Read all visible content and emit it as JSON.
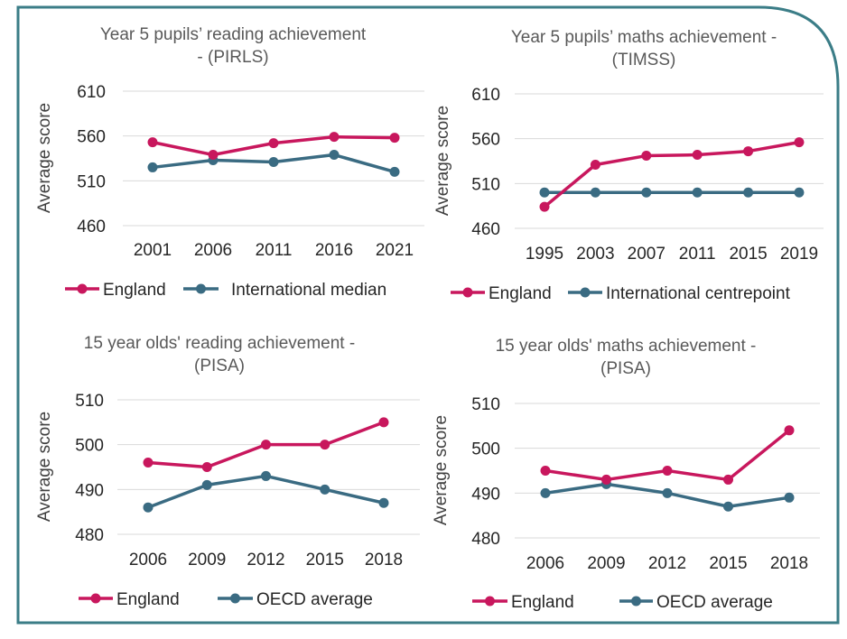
{
  "colors": {
    "england": "#c8175d",
    "comparison": "#3a6b82",
    "frame": "#3b7d87",
    "grid": "#d9d9d9"
  },
  "chart_data": [
    {
      "type": "line",
      "title": [
        "Year 5 pupils’ reading achievement",
        "- (PIRLS)"
      ],
      "ylabel": "Average score",
      "xlabel": "",
      "categories": [
        "2001",
        "2006",
        "2011",
        "2016",
        "2021"
      ],
      "ylim": [
        460,
        610
      ],
      "yticks": [
        460,
        510,
        560,
        610
      ],
      "grid": true,
      "legend_position": "bottom",
      "series": [
        {
          "name": "England",
          "color_key": "england",
          "values": [
            553,
            539,
            552,
            559,
            558
          ]
        },
        {
          "name": "International median",
          "color_key": "comparison",
          "values": [
            525,
            533,
            531,
            539,
            520
          ]
        }
      ]
    },
    {
      "type": "line",
      "title": [
        "Year 5 pupils’ maths achievement -",
        "(TIMSS)"
      ],
      "ylabel": "Average score",
      "xlabel": "",
      "categories": [
        "1995",
        "2003",
        "2007",
        "2011",
        "2015",
        "2019"
      ],
      "ylim": [
        460,
        610
      ],
      "yticks": [
        460,
        510,
        560,
        610
      ],
      "grid": true,
      "legend_position": "bottom",
      "series": [
        {
          "name": "England",
          "color_key": "england",
          "values": [
            484,
            531,
            541,
            542,
            546,
            556
          ]
        },
        {
          "name": "International centrepoint",
          "color_key": "comparison",
          "values": [
            500,
            500,
            500,
            500,
            500,
            500
          ]
        }
      ]
    },
    {
      "type": "line",
      "title": [
        "15 year olds' reading achievement -",
        "(PISA)"
      ],
      "ylabel": "Average score",
      "xlabel": "",
      "categories": [
        "2006",
        "2009",
        "2012",
        "2015",
        "2018"
      ],
      "ylim": [
        480,
        510
      ],
      "yticks": [
        480,
        490,
        500,
        510
      ],
      "grid": true,
      "legend_position": "bottom",
      "series": [
        {
          "name": "England",
          "color_key": "england",
          "values": [
            496,
            495,
            500,
            500,
            505
          ]
        },
        {
          "name": "OECD average",
          "color_key": "comparison",
          "values": [
            486,
            491,
            493,
            490,
            487
          ]
        }
      ]
    },
    {
      "type": "line",
      "title": [
        "15 year olds' maths achievement -",
        "(PISA)"
      ],
      "ylabel": "Average score",
      "xlabel": "",
      "categories": [
        "2006",
        "2009",
        "2012",
        "2015",
        "2018"
      ],
      "ylim": [
        480,
        510
      ],
      "yticks": [
        480,
        490,
        500,
        510
      ],
      "grid": true,
      "legend_position": "bottom",
      "series": [
        {
          "name": "England",
          "color_key": "england",
          "values": [
            495,
            493,
            495,
            493,
            504
          ]
        },
        {
          "name": "OECD average",
          "color_key": "comparison",
          "values": [
            490,
            492,
            490,
            487,
            489
          ]
        }
      ]
    }
  ]
}
